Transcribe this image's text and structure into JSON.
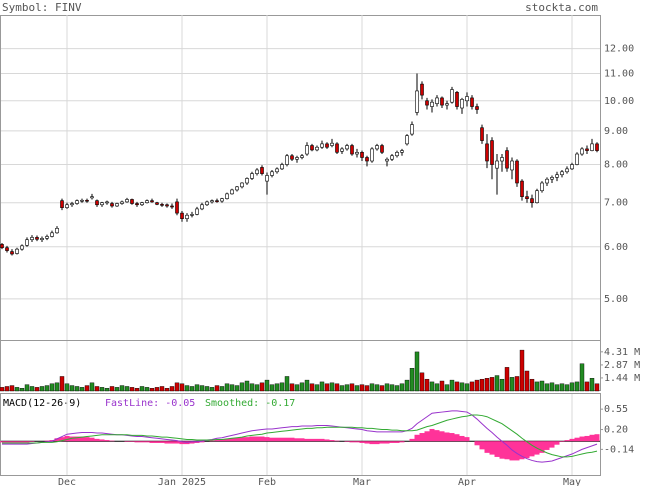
{
  "chart_data": {
    "type": "candlestick",
    "title": "Symbol: FINV",
    "source": "stockta.com",
    "log_scale": true,
    "grid": true,
    "up_color": "#ffffff",
    "down_color": "#cc0000",
    "categories": [
      null,
      null,
      null,
      null,
      null,
      null,
      null,
      null,
      null,
      null,
      null,
      null,
      null,
      "Dec",
      null,
      null,
      null,
      null,
      null,
      null,
      null,
      null,
      null,
      null,
      null,
      null,
      null,
      null,
      null,
      null,
      null,
      null,
      null,
      null,
      null,
      null,
      "Jan 2025",
      null,
      null,
      null,
      null,
      null,
      null,
      null,
      null,
      null,
      null,
      null,
      null,
      null,
      null,
      null,
      null,
      "Feb",
      null,
      null,
      null,
      null,
      null,
      null,
      null,
      null,
      null,
      null,
      null,
      null,
      null,
      null,
      null,
      null,
      null,
      null,
      "Mar",
      null,
      null,
      null,
      null,
      null,
      null,
      null,
      null,
      null,
      null,
      null,
      null,
      null,
      null,
      null,
      null,
      null,
      null,
      null,
      null,
      "Apr",
      null,
      null,
      null,
      null,
      null,
      null,
      null,
      null,
      null,
      null,
      null,
      null,
      null,
      null,
      null,
      null,
      null,
      null,
      null,
      null,
      "May",
      null,
      null,
      null,
      null,
      null
    ],
    "ohlc": [
      [
        6.05,
        6.08,
        5.95,
        5.98
      ],
      [
        5.98,
        6.02,
        5.88,
        5.92
      ],
      [
        5.9,
        5.95,
        5.82,
        5.85
      ],
      [
        5.86,
        5.98,
        5.84,
        5.95
      ],
      [
        5.95,
        6.05,
        5.92,
        6.02
      ],
      [
        6.03,
        6.2,
        6.0,
        6.15
      ],
      [
        6.15,
        6.25,
        6.1,
        6.2
      ],
      [
        6.2,
        6.24,
        6.12,
        6.16
      ],
      [
        6.15,
        6.22,
        6.1,
        6.18
      ],
      [
        6.18,
        6.26,
        6.14,
        6.22
      ],
      [
        6.22,
        6.35,
        6.2,
        6.3
      ],
      [
        6.3,
        6.45,
        6.28,
        6.4
      ],
      [
        7.05,
        7.1,
        6.82,
        6.88
      ],
      [
        6.88,
        7.0,
        6.85,
        6.95
      ],
      [
        6.95,
        7.02,
        6.9,
        6.98
      ],
      [
        6.98,
        7.08,
        6.95,
        7.05
      ],
      [
        7.05,
        7.1,
        7.0,
        7.06
      ],
      [
        7.06,
        7.1,
        7.0,
        7.04
      ],
      [
        7.12,
        7.22,
        7.08,
        7.15
      ],
      [
        7.05,
        7.08,
        6.9,
        6.95
      ],
      [
        6.95,
        7.02,
        6.9,
        7.0
      ],
      [
        7.0,
        7.05,
        6.95,
        7.02
      ],
      [
        6.98,
        7.02,
        6.88,
        6.92
      ],
      [
        6.92,
        7.0,
        6.9,
        6.98
      ],
      [
        6.98,
        7.05,
        6.95,
        7.02
      ],
      [
        7.02,
        7.12,
        7.0,
        7.08
      ],
      [
        7.08,
        7.1,
        6.95,
        6.98
      ],
      [
        6.98,
        7.02,
        6.9,
        6.95
      ],
      [
        6.95,
        7.02,
        6.92,
        7.0
      ],
      [
        7.0,
        7.08,
        6.98,
        7.05
      ],
      [
        7.05,
        7.1,
        7.0,
        7.02
      ],
      [
        7.0,
        7.02,
        6.94,
        6.96
      ],
      [
        6.96,
        7.0,
        6.9,
        6.95
      ],
      [
        6.95,
        6.98,
        6.88,
        6.92
      ],
      [
        6.92,
        6.98,
        6.85,
        6.9
      ],
      [
        7.02,
        7.1,
        6.7,
        6.75
      ],
      [
        6.75,
        6.8,
        6.55,
        6.62
      ],
      [
        6.62,
        6.75,
        6.55,
        6.7
      ],
      [
        6.7,
        6.78,
        6.65,
        6.72
      ],
      [
        6.72,
        6.9,
        6.7,
        6.85
      ],
      [
        6.85,
        7.0,
        6.82,
        6.95
      ],
      [
        6.95,
        7.05,
        6.92,
        7.02
      ],
      [
        7.02,
        7.08,
        6.98,
        7.05
      ],
      [
        7.05,
        7.1,
        7.0,
        7.04
      ],
      [
        7.04,
        7.12,
        7.0,
        7.1
      ],
      [
        7.1,
        7.25,
        7.08,
        7.22
      ],
      [
        7.22,
        7.35,
        7.2,
        7.32
      ],
      [
        7.32,
        7.42,
        7.28,
        7.4
      ],
      [
        7.4,
        7.52,
        7.36,
        7.5
      ],
      [
        7.5,
        7.65,
        7.45,
        7.62
      ],
      [
        7.62,
        7.8,
        7.58,
        7.75
      ],
      [
        7.75,
        7.9,
        7.7,
        7.85
      ],
      [
        7.92,
        7.98,
        7.7,
        7.75
      ],
      [
        7.55,
        7.78,
        7.2,
        7.7
      ],
      [
        7.7,
        7.85,
        7.65,
        7.8
      ],
      [
        7.8,
        7.92,
        7.75,
        7.88
      ],
      [
        7.88,
        8.05,
        7.85,
        8.0
      ],
      [
        8.0,
        8.3,
        7.95,
        8.25
      ],
      [
        8.25,
        8.3,
        8.1,
        8.15
      ],
      [
        8.15,
        8.25,
        8.05,
        8.2
      ],
      [
        8.2,
        8.3,
        8.15,
        8.25
      ],
      [
        8.3,
        8.65,
        8.25,
        8.55
      ],
      [
        8.55,
        8.6,
        8.38,
        8.42
      ],
      [
        8.42,
        8.55,
        8.38,
        8.5
      ],
      [
        8.5,
        8.7,
        8.45,
        8.6
      ],
      [
        8.6,
        8.65,
        8.45,
        8.5
      ],
      [
        8.55,
        8.75,
        8.5,
        8.62
      ],
      [
        8.6,
        8.65,
        8.3,
        8.35
      ],
      [
        8.38,
        8.5,
        8.3,
        8.45
      ],
      [
        8.45,
        8.6,
        8.4,
        8.55
      ],
      [
        8.55,
        8.6,
        8.25,
        8.3
      ],
      [
        8.3,
        8.45,
        8.2,
        8.35
      ],
      [
        8.35,
        8.4,
        8.1,
        8.2
      ],
      [
        8.2,
        8.25,
        7.95,
        8.1
      ],
      [
        8.1,
        8.5,
        8.05,
        8.45
      ],
      [
        8.45,
        8.6,
        8.4,
        8.55
      ],
      [
        8.55,
        8.6,
        8.3,
        8.35
      ],
      [
        8.1,
        8.2,
        7.95,
        8.15
      ],
      [
        8.15,
        8.3,
        8.1,
        8.25
      ],
      [
        8.25,
        8.4,
        8.2,
        8.35
      ],
      [
        8.35,
        8.45,
        8.25,
        8.4
      ],
      [
        8.6,
        8.9,
        8.55,
        8.85
      ],
      [
        8.9,
        9.3,
        8.85,
        9.2
      ],
      [
        9.6,
        11.0,
        9.5,
        10.35
      ],
      [
        10.6,
        10.7,
        10.05,
        10.2
      ],
      [
        10.0,
        10.1,
        9.7,
        9.85
      ],
      [
        9.8,
        10.05,
        9.6,
        9.95
      ],
      [
        9.9,
        10.2,
        9.8,
        10.1
      ],
      [
        10.1,
        10.15,
        9.75,
        9.85
      ],
      [
        9.85,
        10.0,
        9.7,
        9.9
      ],
      [
        9.95,
        10.5,
        9.9,
        10.4
      ],
      [
        10.3,
        10.35,
        9.7,
        9.8
      ],
      [
        9.75,
        10.1,
        9.55,
        10.05
      ],
      [
        10.0,
        10.3,
        9.8,
        10.15
      ],
      [
        10.1,
        10.2,
        9.7,
        9.8
      ],
      [
        9.8,
        9.9,
        9.55,
        9.7
      ],
      [
        9.1,
        9.2,
        8.6,
        8.7
      ],
      [
        8.6,
        8.9,
        7.9,
        8.1
      ],
      [
        8.7,
        8.8,
        7.6,
        8.0
      ],
      [
        7.9,
        8.3,
        7.2,
        8.1
      ],
      [
        8.1,
        8.3,
        7.8,
        8.2
      ],
      [
        8.4,
        8.5,
        7.8,
        7.9
      ],
      [
        7.85,
        8.2,
        7.6,
        8.1
      ],
      [
        8.1,
        8.15,
        7.4,
        7.5
      ],
      [
        7.55,
        7.6,
        7.05,
        7.15
      ],
      [
        7.15,
        7.3,
        7.0,
        7.1
      ],
      [
        7.1,
        7.2,
        6.88,
        7.0
      ],
      [
        7.0,
        7.35,
        6.98,
        7.3
      ],
      [
        7.3,
        7.55,
        7.25,
        7.5
      ],
      [
        7.5,
        7.65,
        7.42,
        7.6
      ],
      [
        7.6,
        7.7,
        7.5,
        7.65
      ],
      [
        7.65,
        7.8,
        7.55,
        7.72
      ],
      [
        7.72,
        7.85,
        7.65,
        7.8
      ],
      [
        7.8,
        7.95,
        7.75,
        7.88
      ],
      [
        7.88,
        8.05,
        7.85,
        8.0
      ],
      [
        8.0,
        8.35,
        7.98,
        8.3
      ],
      [
        8.3,
        8.5,
        8.25,
        8.45
      ],
      [
        8.45,
        8.55,
        8.3,
        8.4
      ],
      [
        8.4,
        8.75,
        8.38,
        8.6
      ],
      [
        8.6,
        8.65,
        8.35,
        8.4
      ]
    ],
    "ylim": [
      4.33,
      13.5
    ],
    "yticks": [
      {
        "value": 12,
        "label": "12.00"
      },
      {
        "value": 11,
        "label": "11.00"
      },
      {
        "value": 10,
        "label": "10.00"
      },
      {
        "value": 9,
        "label": "9.00"
      },
      {
        "value": 8,
        "label": "8.00"
      },
      {
        "value": 7,
        "label": "7.00"
      },
      {
        "value": 6,
        "label": "6.00"
      },
      {
        "value": 5,
        "label": "5.00"
      }
    ],
    "volume": {
      "up_color": "#228b22",
      "down_color": "#cc0000",
      "ylim": [
        0,
        5.5
      ],
      "yticks": [
        {
          "value": 4.31,
          "label": "4.31 M"
        },
        {
          "value": 2.87,
          "label": "2.87 M"
        },
        {
          "value": 1.44,
          "label": "1.44 M"
        }
      ],
      "values": [
        0.4,
        0.5,
        0.6,
        0.4,
        0.3,
        0.7,
        0.5,
        0.4,
        0.5,
        0.6,
        0.8,
        0.9,
        1.6,
        0.8,
        0.6,
        0.5,
        0.4,
        0.6,
        0.9,
        0.5,
        0.4,
        0.3,
        0.5,
        0.4,
        0.6,
        0.5,
        0.4,
        0.3,
        0.5,
        0.4,
        0.3,
        0.4,
        0.5,
        0.3,
        0.5,
        0.9,
        0.8,
        0.6,
        0.5,
        0.7,
        0.6,
        0.5,
        0.4,
        0.6,
        0.5,
        0.8,
        0.7,
        0.6,
        0.9,
        1.1,
        0.8,
        0.7,
        0.9,
        1.2,
        0.7,
        0.8,
        0.9,
        1.6,
        0.8,
        0.7,
        0.9,
        1.2,
        0.8,
        0.7,
        1.0,
        0.8,
        0.9,
        0.8,
        0.6,
        0.7,
        0.8,
        0.6,
        0.7,
        0.6,
        0.8,
        0.7,
        0.6,
        0.8,
        0.7,
        0.6,
        0.8,
        1.2,
        2.5,
        4.3,
        2.0,
        1.3,
        1.0,
        0.8,
        1.1,
        0.7,
        1.2,
        1.0,
        0.9,
        0.8,
        1.0,
        1.2,
        1.3,
        1.4,
        1.5,
        1.7,
        1.3,
        2.6,
        1.5,
        1.6,
        4.5,
        2.2,
        1.3,
        1.0,
        1.1,
        0.8,
        0.9,
        0.7,
        0.8,
        0.7,
        0.9,
        1.0,
        3.0,
        1.0,
        1.4,
        0.8
      ]
    },
    "macd": {
      "label": "MACD(12-26-9)",
      "hist_color": "#ff3399",
      "ylim": [
        -0.58,
        0.81
      ],
      "yticks": [
        0.55,
        {
          "value": 0.2,
          "label": "0.20"
        },
        -0.14
      ],
      "series": [
        {
          "name": "FastLine: -0.05",
          "color": "#9933cc",
          "values": [
            -0.05,
            -0.05,
            -0.05,
            -0.05,
            -0.05,
            -0.05,
            -0.04,
            -0.03,
            -0.02,
            -0.01,
            0.0,
            0.04,
            0.08,
            0.12,
            0.13,
            0.14,
            0.15,
            0.15,
            0.15,
            0.14,
            0.14,
            0.13,
            0.12,
            0.11,
            0.11,
            0.1,
            0.09,
            0.08,
            0.08,
            0.07,
            0.06,
            0.05,
            0.04,
            0.03,
            0.02,
            0.01,
            -0.01,
            -0.02,
            -0.01,
            -0.01,
            0.0,
            0.02,
            0.03,
            0.05,
            0.06,
            0.08,
            0.1,
            0.12,
            0.14,
            0.16,
            0.18,
            0.19,
            0.2,
            0.21,
            0.21,
            0.22,
            0.23,
            0.24,
            0.25,
            0.25,
            0.26,
            0.26,
            0.26,
            0.27,
            0.27,
            0.27,
            0.26,
            0.25,
            0.24,
            0.23,
            0.22,
            0.21,
            0.2,
            0.18,
            0.17,
            0.16,
            0.16,
            0.16,
            0.16,
            0.16,
            0.16,
            0.18,
            0.22,
            0.3,
            0.36,
            0.42,
            0.48,
            0.49,
            0.5,
            0.51,
            0.52,
            0.52,
            0.51,
            0.5,
            0.45,
            0.38,
            0.3,
            0.22,
            0.15,
            0.07,
            0.0,
            -0.07,
            -0.15,
            -0.21,
            -0.26,
            -0.3,
            -0.33,
            -0.35,
            -0.36,
            -0.35,
            -0.34,
            -0.31,
            -0.28,
            -0.25,
            -0.22,
            -0.18,
            -0.14,
            -0.11,
            -0.08,
            -0.05
          ]
        },
        {
          "name": "Smoothed: -0.17",
          "color": "#33aa33",
          "values": [
            -0.03,
            -0.03,
            -0.03,
            -0.03,
            -0.03,
            -0.03,
            -0.03,
            -0.03,
            -0.02,
            -0.02,
            -0.02,
            -0.01,
            0.01,
            0.03,
            0.05,
            0.06,
            0.07,
            0.08,
            0.09,
            0.1,
            0.11,
            0.11,
            0.11,
            0.11,
            0.11,
            0.11,
            0.1,
            0.1,
            0.1,
            0.09,
            0.09,
            0.08,
            0.07,
            0.07,
            0.06,
            0.05,
            0.04,
            0.03,
            0.03,
            0.02,
            0.02,
            0.02,
            0.02,
            0.03,
            0.03,
            0.04,
            0.05,
            0.06,
            0.07,
            0.09,
            0.1,
            0.11,
            0.12,
            0.14,
            0.15,
            0.16,
            0.17,
            0.18,
            0.19,
            0.2,
            0.21,
            0.22,
            0.22,
            0.23,
            0.23,
            0.24,
            0.24,
            0.24,
            0.24,
            0.24,
            0.24,
            0.23,
            0.23,
            0.22,
            0.22,
            0.21,
            0.2,
            0.2,
            0.19,
            0.19,
            0.18,
            0.18,
            0.18,
            0.19,
            0.22,
            0.25,
            0.27,
            0.3,
            0.33,
            0.36,
            0.38,
            0.4,
            0.42,
            0.43,
            0.45,
            0.45,
            0.44,
            0.42,
            0.38,
            0.34,
            0.3,
            0.24,
            0.18,
            0.12,
            0.05,
            -0.01,
            -0.07,
            -0.12,
            -0.16,
            -0.2,
            -0.23,
            -0.25,
            -0.27,
            -0.27,
            -0.26,
            -0.24,
            -0.22,
            -0.2,
            -0.19,
            -0.17
          ]
        }
      ]
    }
  }
}
